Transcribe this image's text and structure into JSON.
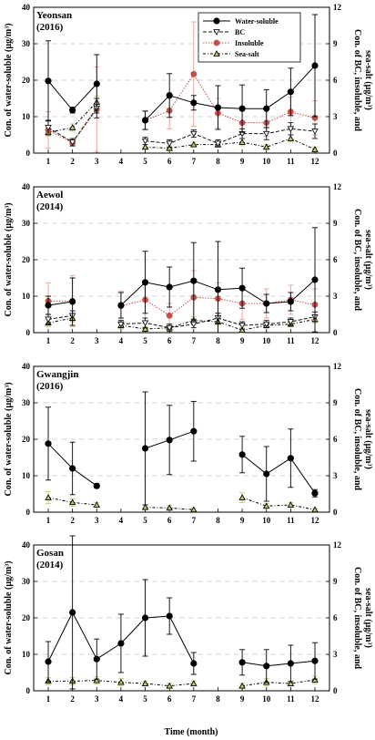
{
  "colors": {
    "water_soluble": "#000000",
    "bc": "#111111",
    "insoluble": "#c0504d",
    "insoluble_err": "#e8a090",
    "sea_salt": "#7a7a30",
    "sea_salt_fill": "#c9c86a",
    "sea_salt_err": "#c8c860",
    "grid": "#c8c8c8"
  },
  "legend": {
    "water_soluble": "Water-soluble",
    "bc": "BC",
    "insoluble": "Insoluble",
    "sea_salt": "Sea-salt"
  },
  "axes": {
    "left_label": "Con. of water-soluble (µg/m³)",
    "right_label_1": "Con. of BC, insoluble, and",
    "right_label_2": "sea-salt (µg/m³)",
    "x_label": "Time (month)"
  },
  "chart_data": [
    {
      "type": "line",
      "panel_title": "Yeonsan",
      "panel_year": "(2016)",
      "x": [
        1,
        2,
        3,
        4,
        5,
        6,
        7,
        8,
        9,
        10,
        11,
        12
      ],
      "left_ylim": [
        0,
        40
      ],
      "right_ylim": [
        0,
        12
      ],
      "left_ticks": [
        0,
        10,
        20,
        30,
        40
      ],
      "right_ticks": [
        0,
        3,
        6,
        9,
        12
      ],
      "grid": true,
      "legend_position": "top-right",
      "series": [
        {
          "name": "Water-soluble",
          "axis": "left",
          "values": [
            19.8,
            11.8,
            19,
            null,
            9,
            15.8,
            13.8,
            12.5,
            12.2,
            12.2,
            16.8,
            24
          ],
          "err": [
            11,
            0.8,
            8,
            null,
            2.5,
            6,
            2,
            6,
            6.5,
            5.2,
            6.5,
            14
          ]
        },
        {
          "name": "BC",
          "axis": "right",
          "values": [
            2.1,
            0.9,
            3.7,
            null,
            1,
            0.8,
            1.6,
            0.8,
            1.6,
            1.6,
            2,
            1.8
          ],
          "err": [
            0.6,
            0.3,
            0.8,
            null,
            0.3,
            0.3,
            0.3,
            0.3,
            0.4,
            0.5,
            0.5,
            0.6
          ]
        },
        {
          "name": "Insoluble",
          "axis": "right",
          "values": [
            1.9,
            0.85,
            3.6,
            null,
            2.7,
            3.5,
            6.5,
            3.3,
            2.5,
            2.5,
            3.4,
            2.9
          ],
          "err": [
            1.5,
            0.3,
            3.5,
            null,
            0.8,
            1.5,
            4.3,
            1.2,
            1,
            1.1,
            1.2,
            1.4
          ]
        },
        {
          "name": "Sea-salt",
          "axis": "right",
          "values": [
            1.7,
            2.1,
            4.2,
            null,
            0.5,
            0.4,
            0.7,
            0.7,
            0.9,
            0.5,
            1.2,
            0.3
          ],
          "err": [
            0.3,
            0.3,
            0.5,
            null,
            0.2,
            0.2,
            0.2,
            0.2,
            0.3,
            0.2,
            0.3,
            0.2
          ]
        }
      ]
    },
    {
      "type": "line",
      "panel_title": "Aewol",
      "panel_year": "(2014)",
      "x": [
        1,
        2,
        3,
        4,
        5,
        6,
        7,
        8,
        9,
        10,
        11,
        12
      ],
      "left_ylim": [
        0,
        40
      ],
      "right_ylim": [
        0,
        12
      ],
      "left_ticks": [
        0,
        10,
        20,
        30,
        40
      ],
      "right_ticks": [
        0,
        3,
        6,
        9,
        12
      ],
      "grid": true,
      "series": [
        {
          "name": "Water-soluble",
          "axis": "left",
          "values": [
            7.5,
            8.5,
            null,
            7.5,
            13.8,
            12.5,
            14.2,
            11.8,
            12.2,
            8,
            8.5,
            14.5
          ],
          "err": [
            2.5,
            6.5,
            null,
            3.5,
            8.5,
            5.5,
            10.5,
            13.2,
            5.5,
            2.5,
            2.5,
            14.3
          ]
        },
        {
          "name": "BC",
          "axis": "right",
          "values": [
            1.1,
            1.4,
            null,
            0.7,
            0.8,
            0.4,
            0.7,
            1.2,
            0.6,
            0.7,
            0.9,
            1.3
          ],
          "err": [
            0.4,
            0.4,
            null,
            0.3,
            0.4,
            0.3,
            0.3,
            0.4,
            0.3,
            0.3,
            0.3,
            0.4
          ]
        },
        {
          "name": "Insoluble",
          "axis": "right",
          "values": [
            2.6,
            2.6,
            null,
            2.2,
            2.7,
            1.4,
            2.9,
            2.8,
            2.4,
            2.4,
            2.7,
            2.3
          ],
          "err": [
            1.5,
            2.1,
            null,
            1.2,
            1.5,
            1,
            2.2,
            1.3,
            1.3,
            1.2,
            1.2,
            1.3
          ]
        },
        {
          "name": "Sea-salt",
          "axis": "right",
          "values": [
            0.8,
            1.2,
            null,
            0.6,
            0.3,
            0.4,
            1,
            0.9,
            0.2,
            0.6,
            0.7,
            1.1
          ],
          "err": [
            0.3,
            0.3,
            null,
            0.3,
            0.2,
            0.2,
            0.3,
            0.3,
            0.2,
            0.2,
            0.2,
            0.3
          ]
        }
      ]
    },
    {
      "type": "line",
      "panel_title": "Gwangjin",
      "panel_year": "(2016)",
      "x": [
        1,
        2,
        3,
        4,
        5,
        6,
        7,
        8,
        9,
        10,
        11,
        12
      ],
      "left_ylim": [
        0,
        40
      ],
      "right_ylim": [
        0,
        12
      ],
      "left_ticks": [
        0,
        10,
        20,
        30,
        40
      ],
      "right_ticks": [
        0,
        3,
        6,
        9,
        12
      ],
      "grid": true,
      "series": [
        {
          "name": "Water-soluble",
          "axis": "left",
          "values": [
            18.8,
            12,
            7.2,
            null,
            17.5,
            19.8,
            22.2,
            null,
            15.8,
            10.5,
            14.8,
            5.2
          ],
          "err": [
            10,
            7.2,
            0.6,
            null,
            15.5,
            9.5,
            8.2,
            null,
            5,
            7.5,
            8,
            1
          ]
        },
        {
          "name": "Sea-salt",
          "axis": "right",
          "values": [
            1.2,
            0.8,
            0.6,
            null,
            0.4,
            0.35,
            0.2,
            null,
            1.2,
            0.5,
            0.6,
            0.2
          ],
          "err": [
            0.5,
            0.3,
            0.2,
            null,
            0.2,
            0.2,
            0.1,
            null,
            0.4,
            0.2,
            0.2,
            0.1
          ]
        }
      ]
    },
    {
      "type": "line",
      "panel_title": "Gosan",
      "panel_year": "(2014)",
      "x": [
        1,
        2,
        3,
        4,
        5,
        6,
        7,
        8,
        9,
        10,
        11,
        12
      ],
      "left_ylim": [
        0,
        40
      ],
      "right_ylim": [
        0,
        12
      ],
      "left_ticks": [
        0,
        10,
        20,
        30,
        40
      ],
      "right_ticks": [
        0,
        3,
        6,
        9,
        12
      ],
      "grid": true,
      "series": [
        {
          "name": "Water-soluble",
          "axis": "left",
          "values": [
            8,
            21.5,
            8.7,
            13,
            20,
            20.5,
            7.5,
            null,
            7.8,
            6.8,
            7.5,
            8.2
          ],
          "err": [
            5.5,
            21,
            5.5,
            8,
            10.5,
            5,
            3,
            null,
            3.5,
            4.5,
            5,
            5
          ]
        },
        {
          "name": "Sea-salt",
          "axis": "right",
          "values": [
            0.8,
            0.8,
            0.85,
            0.7,
            0.6,
            0.4,
            0.6,
            null,
            0.4,
            0.7,
            0.6,
            0.9
          ],
          "err": [
            0.3,
            0.3,
            0.3,
            0.3,
            0.2,
            0.2,
            0.2,
            null,
            0.2,
            0.3,
            0.2,
            0.3
          ]
        }
      ]
    }
  ]
}
